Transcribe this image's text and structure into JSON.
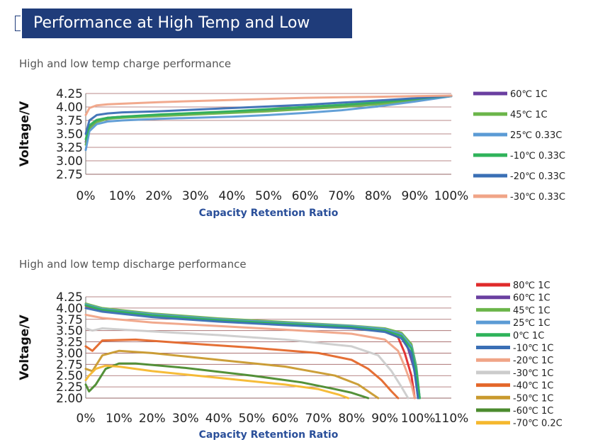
{
  "header": {
    "title": "Performance at High Temp and Low Temp"
  },
  "chart_data": [
    {
      "type": "line",
      "title": "High and low temp charge performance",
      "xlabel": "Capacity Retention Ratio",
      "ylabel": "Voltage/V",
      "xlim": [
        0,
        100
      ],
      "ylim": [
        2.75,
        4.25
      ],
      "yticks": [
        "4.25",
        "4.00",
        "3.75",
        "3.50",
        "3.25",
        "3.00",
        "2.75"
      ],
      "xticks": [
        "0%",
        "10%",
        "20%",
        "30%",
        "40%",
        "50%",
        "60%",
        "70%",
        "80%",
        "90%",
        "100%"
      ],
      "grid": true,
      "legend_position": "right",
      "series": [
        {
          "name": "60℃ 1C",
          "color": "#6a3fa0",
          "x": [
            0,
            1,
            3,
            6,
            10,
            20,
            30,
            40,
            50,
            60,
            70,
            80,
            90,
            100
          ],
          "y": [
            3.35,
            3.62,
            3.74,
            3.8,
            3.82,
            3.85,
            3.88,
            3.91,
            3.94,
            3.98,
            4.02,
            4.07,
            4.13,
            4.2
          ]
        },
        {
          "name": "45℃ 1C",
          "color": "#6bb54a",
          "x": [
            0,
            1,
            3,
            6,
            10,
            20,
            30,
            40,
            50,
            60,
            70,
            80,
            90,
            100
          ],
          "y": [
            3.3,
            3.6,
            3.72,
            3.78,
            3.8,
            3.83,
            3.86,
            3.89,
            3.92,
            3.96,
            4.0,
            4.05,
            4.12,
            4.2
          ]
        },
        {
          "name": "25℃ 0.33C",
          "color": "#5b9bd5",
          "x": [
            0,
            1,
            3,
            6,
            10,
            20,
            30,
            40,
            50,
            60,
            70,
            80,
            90,
            100
          ],
          "y": [
            3.2,
            3.55,
            3.68,
            3.73,
            3.75,
            3.78,
            3.8,
            3.82,
            3.85,
            3.89,
            3.94,
            4.01,
            4.1,
            4.2
          ]
        },
        {
          "name": "-10℃ 0.33C",
          "color": "#2fb35a",
          "x": [
            0,
            1,
            3,
            6,
            10,
            20,
            30,
            40,
            50,
            60,
            70,
            80,
            90,
            100
          ],
          "y": [
            3.4,
            3.66,
            3.76,
            3.8,
            3.82,
            3.86,
            3.89,
            3.92,
            3.96,
            4.0,
            4.04,
            4.09,
            4.15,
            4.21
          ]
        },
        {
          "name": "-20℃ 0.33C",
          "color": "#3a6fb5",
          "x": [
            0,
            1,
            3,
            6,
            10,
            20,
            30,
            40,
            50,
            60,
            70,
            80,
            90,
            100
          ],
          "y": [
            3.5,
            3.75,
            3.85,
            3.88,
            3.9,
            3.92,
            3.95,
            3.98,
            4.01,
            4.04,
            4.08,
            4.12,
            4.16,
            4.21
          ]
        },
        {
          "name": "-30℃ 0.33C",
          "color": "#f0a487",
          "x": [
            0,
            1,
            3,
            6,
            10,
            20,
            30,
            40,
            50,
            60,
            70,
            80,
            90,
            100
          ],
          "y": [
            3.85,
            3.98,
            4.03,
            4.05,
            4.06,
            4.09,
            4.11,
            4.13,
            4.15,
            4.17,
            4.18,
            4.19,
            4.2,
            4.21
          ]
        }
      ]
    },
    {
      "type": "line",
      "title": "High and low temp discharge performance",
      "xlabel": "Capacity Retention Ratio",
      "ylabel": "Voltage/V",
      "xlim": [
        0,
        110
      ],
      "ylim": [
        2.0,
        4.25
      ],
      "yticks": [
        "4.25",
        "4.00",
        "3.75",
        "3.50",
        "3.25",
        "3.00",
        "2.75",
        "2.50",
        "2.25",
        "2.00"
      ],
      "xticks": [
        "0%",
        "10%",
        "20%",
        "30%",
        "40%",
        "50%",
        "60%",
        "70%",
        "80%",
        "90%",
        "100%",
        "110%"
      ],
      "grid": true,
      "legend_position": "right",
      "series": [
        {
          "name": "80℃ 1C",
          "color": "#e02b2b",
          "x": [
            0,
            5,
            20,
            40,
            60,
            80,
            90,
            94,
            96,
            98,
            99
          ],
          "y": [
            4.05,
            3.95,
            3.85,
            3.74,
            3.66,
            3.58,
            3.5,
            3.35,
            3.0,
            2.5,
            2.0
          ]
        },
        {
          "name": "60℃ 1C",
          "color": "#6a3fa0",
          "x": [
            0,
            5,
            20,
            40,
            60,
            80,
            90,
            95,
            97,
            99,
            100
          ],
          "y": [
            4.08,
            3.98,
            3.87,
            3.76,
            3.68,
            3.6,
            3.53,
            3.4,
            3.1,
            2.6,
            2.0
          ]
        },
        {
          "name": "45℃ 1C",
          "color": "#6bb54a",
          "x": [
            0,
            5,
            20,
            40,
            60,
            80,
            90,
            95,
            98,
            99.5,
            100.5
          ],
          "y": [
            4.1,
            4.0,
            3.88,
            3.77,
            3.69,
            3.61,
            3.55,
            3.45,
            3.2,
            2.7,
            2.0
          ]
        },
        {
          "name": "25℃ 1C",
          "color": "#5b9bd5",
          "x": [
            0,
            5,
            20,
            40,
            60,
            80,
            90,
            95,
            98,
            99.5,
            100.5
          ],
          "y": [
            4.08,
            3.98,
            3.86,
            3.75,
            3.67,
            3.6,
            3.53,
            3.42,
            3.15,
            2.65,
            2.0
          ]
        },
        {
          "name": "0℃  1C",
          "color": "#2fb35a",
          "x": [
            0,
            5,
            20,
            40,
            60,
            80,
            90,
            95,
            98,
            99.5,
            100.5
          ],
          "y": [
            4.06,
            3.96,
            3.84,
            3.73,
            3.65,
            3.58,
            3.5,
            3.38,
            3.1,
            2.6,
            2.0
          ]
        },
        {
          "name": "-10℃ 1C",
          "color": "#3a6fb5",
          "x": [
            0,
            5,
            20,
            40,
            60,
            80,
            90,
            95,
            98,
            99,
            100
          ],
          "y": [
            4.0,
            3.92,
            3.8,
            3.7,
            3.62,
            3.55,
            3.47,
            3.33,
            3.0,
            2.55,
            2.0
          ]
        },
        {
          "name": "-20℃ 1C",
          "color": "#f0a487",
          "x": [
            0,
            5,
            20,
            40,
            60,
            80,
            90,
            94,
            96,
            98,
            99
          ],
          "y": [
            3.85,
            3.78,
            3.68,
            3.6,
            3.52,
            3.43,
            3.3,
            3.05,
            2.7,
            2.3,
            2.0
          ]
        },
        {
          "name": "-30℃ 1C",
          "color": "#cccccc",
          "x": [
            0,
            2,
            5,
            20,
            40,
            60,
            80,
            88,
            92,
            95,
            97
          ],
          "y": [
            3.55,
            3.5,
            3.55,
            3.48,
            3.4,
            3.3,
            3.15,
            2.95,
            2.6,
            2.25,
            2.0
          ]
        },
        {
          "name": "-40℃ 1C",
          "color": "#e4672a",
          "x": [
            0,
            2,
            5,
            15,
            30,
            50,
            70,
            80,
            85,
            89,
            92,
            94
          ],
          "y": [
            3.15,
            3.05,
            3.28,
            3.3,
            3.22,
            3.12,
            3.0,
            2.85,
            2.65,
            2.4,
            2.15,
            2.0
          ]
        },
        {
          "name": "-50℃ 1C",
          "color": "#c99a2e",
          "x": [
            0,
            2,
            5,
            10,
            20,
            40,
            60,
            75,
            82,
            86,
            88
          ],
          "y": [
            2.65,
            2.6,
            2.95,
            3.05,
            3.0,
            2.85,
            2.7,
            2.5,
            2.3,
            2.1,
            2.0
          ]
        },
        {
          "name": "-60℃ 1C",
          "color": "#4b8b2e",
          "x": [
            0,
            1,
            3,
            6,
            10,
            15,
            30,
            50,
            65,
            75,
            80,
            85
          ],
          "y": [
            2.3,
            2.15,
            2.3,
            2.65,
            2.77,
            2.77,
            2.67,
            2.5,
            2.35,
            2.2,
            2.12,
            2.0
          ]
        },
        {
          "name": "-70℃ 0.2C",
          "color": "#f5b82e",
          "x": [
            0,
            1,
            3,
            6,
            10,
            20,
            40,
            60,
            70,
            76,
            79
          ],
          "y": [
            2.4,
            2.5,
            2.65,
            2.72,
            2.7,
            2.6,
            2.45,
            2.3,
            2.2,
            2.08,
            2.0
          ]
        }
      ]
    }
  ]
}
